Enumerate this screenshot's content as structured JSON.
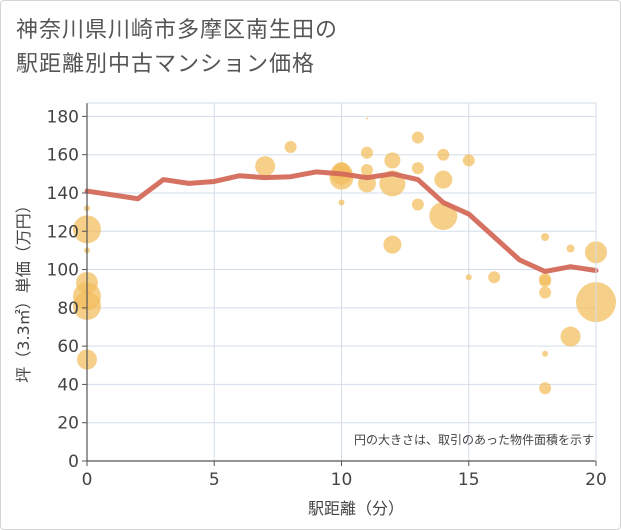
{
  "chart_data": {
    "type": "scatter",
    "title_lines": [
      "神奈川県川崎市多摩区南生田の",
      "駅距離別中古マンション価格"
    ],
    "xlabel": "駅距離（分）",
    "ylabel": "坪（3.3㎡）単価（万円）",
    "xlim": [
      0,
      20
    ],
    "ylim": [
      0,
      187
    ],
    "xticks": [
      0,
      5,
      10,
      15,
      20
    ],
    "yticks": [
      0,
      20,
      40,
      60,
      80,
      100,
      120,
      140,
      160,
      180
    ],
    "x_tick_labels": [
      "0",
      "5",
      "10",
      "15",
      "20"
    ],
    "y_tick_labels": [
      "0",
      "20",
      "40",
      "60",
      "80",
      "100",
      "120",
      "140",
      "160",
      "180"
    ],
    "note": "円の大きさは、取引のあった物件面積を示す",
    "colors": {
      "bubble": "#f2bc5b",
      "line": "#d46a5a",
      "grid": "#d3dde9",
      "axis": "#555555"
    },
    "bubbles": [
      {
        "x": 0,
        "y": 132,
        "r": 3
      },
      {
        "x": 0,
        "y": 121,
        "r": 14
      },
      {
        "x": 0,
        "y": 110,
        "r": 3
      },
      {
        "x": 0,
        "y": 93,
        "r": 11
      },
      {
        "x": 0,
        "y": 86,
        "r": 14
      },
      {
        "x": 0,
        "y": 81,
        "r": 14
      },
      {
        "x": 0,
        "y": 53,
        "r": 10
      },
      {
        "x": 7,
        "y": 154,
        "r": 10
      },
      {
        "x": 8,
        "y": 164,
        "r": 6
      },
      {
        "x": 10,
        "y": 152,
        "r": 8
      },
      {
        "x": 10,
        "y": 150,
        "r": 11
      },
      {
        "x": 10,
        "y": 148,
        "r": 12
      },
      {
        "x": 10,
        "y": 135,
        "r": 3
      },
      {
        "x": 11,
        "y": 179,
        "r": 1
      },
      {
        "x": 11,
        "y": 161,
        "r": 6
      },
      {
        "x": 11,
        "y": 152,
        "r": 6
      },
      {
        "x": 11,
        "y": 145,
        "r": 9
      },
      {
        "x": 12,
        "y": 157,
        "r": 8
      },
      {
        "x": 12,
        "y": 145,
        "r": 13
      },
      {
        "x": 12,
        "y": 113,
        "r": 9
      },
      {
        "x": 13,
        "y": 169,
        "r": 6
      },
      {
        "x": 13,
        "y": 153,
        "r": 6
      },
      {
        "x": 13,
        "y": 134,
        "r": 6
      },
      {
        "x": 14,
        "y": 160,
        "r": 6
      },
      {
        "x": 14,
        "y": 147,
        "r": 9
      },
      {
        "x": 14,
        "y": 128,
        "r": 14
      },
      {
        "x": 15,
        "y": 157,
        "r": 6
      },
      {
        "x": 15,
        "y": 96,
        "r": 3
      },
      {
        "x": 16,
        "y": 96,
        "r": 6
      },
      {
        "x": 18,
        "y": 117,
        "r": 4
      },
      {
        "x": 18,
        "y": 95,
        "r": 6
      },
      {
        "x": 18,
        "y": 94,
        "r": 6
      },
      {
        "x": 18,
        "y": 88,
        "r": 6
      },
      {
        "x": 18,
        "y": 56,
        "r": 3
      },
      {
        "x": 18,
        "y": 38,
        "r": 6
      },
      {
        "x": 19,
        "y": 111,
        "r": 4
      },
      {
        "x": 19,
        "y": 65,
        "r": 10
      },
      {
        "x": 20,
        "y": 109,
        "r": 11
      },
      {
        "x": 20,
        "y": 83,
        "r": 20
      }
    ],
    "trend_line": {
      "x": [
        0,
        1,
        2,
        3,
        4,
        5,
        6,
        7,
        8,
        9,
        10,
        11,
        12,
        13,
        14,
        15,
        16,
        17,
        18,
        19,
        20
      ],
      "y": [
        141,
        139,
        137,
        147,
        145,
        146,
        149,
        148,
        148.5,
        151,
        150,
        148,
        150,
        147,
        135,
        129,
        117,
        105,
        99,
        101.5,
        99.5
      ]
    }
  }
}
